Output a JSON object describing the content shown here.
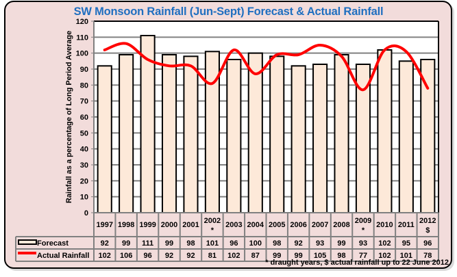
{
  "chart_data": {
    "type": "bar",
    "title": "SW Monsoon Rainfall (Jun-Sept) Forecast & Actual Rainfall",
    "xlabel": "",
    "ylabel": "Rainfall as a percentage of Long Period Average",
    "ylim": [
      0,
      120
    ],
    "yticks": [
      0,
      10,
      20,
      30,
      40,
      50,
      60,
      70,
      80,
      90,
      100,
      110,
      120
    ],
    "grid": true,
    "categories": [
      "1997",
      "1998",
      "1999",
      "2000",
      "2001",
      "2002",
      "2003",
      "2004",
      "2005",
      "2006",
      "2007",
      "2008",
      "2009",
      "2010",
      "2011",
      "2012"
    ],
    "category_marks": [
      "",
      "",
      "",
      "",
      "",
      "*",
      "",
      "",
      "",
      "",
      "",
      "",
      "*",
      "",
      "",
      "$"
    ],
    "series": [
      {
        "name": "Forecast",
        "type": "bar",
        "color": "#fde9d9",
        "edge": "#000000",
        "values": [
          92,
          99,
          111,
          99,
          98,
          101,
          96,
          100,
          98,
          92,
          93,
          99,
          93,
          102,
          95,
          96
        ]
      },
      {
        "name": "Actual Rainfall",
        "type": "line",
        "color": "#ff0000",
        "values": [
          102,
          106,
          96,
          92,
          92,
          81,
          102,
          87,
          99,
          99,
          105,
          98,
          77,
          102,
          101,
          78
        ]
      }
    ],
    "legend": "data-table-bottom",
    "footnote": "* draught years, $ actual rainfall up to 22 June 2012"
  },
  "colors": {
    "title": "#1f6fc0",
    "frame_bg": "#f2dcdb",
    "plot_bg": "#ffffff",
    "bar_fill": "#fde9d9",
    "line": "#ff0000",
    "grid": "#808080"
  }
}
